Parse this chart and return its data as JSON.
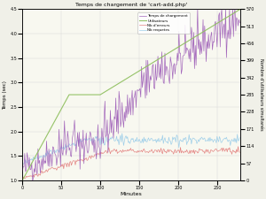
{
  "title": "Temps de chargement de 'cart-add.php'",
  "xlabel": "Minutes",
  "ylabel_left": "Temps (sec)",
  "ylabel_right": "Nombre d'utilisateurs simultanés",
  "legend": [
    "Temps de chargement",
    "Utilisateurs",
    "Nb d'erreurs",
    "Nb requetes"
  ],
  "legend_colors": [
    "#9b59b6",
    "#90c060",
    "#e07070",
    "#90c8e8"
  ],
  "xlim": [
    0,
    280
  ],
  "ylim_left": [
    1.0,
    4.5
  ],
  "ylim_right": [
    0,
    570
  ],
  "left_ticks": [
    1.0,
    1.5,
    2.0,
    2.5,
    3.0,
    3.5,
    4.0,
    4.5
  ],
  "right_ticks": [
    0,
    57,
    114,
    171,
    228,
    285,
    342,
    399,
    456,
    513,
    570
  ],
  "x_ticks": [
    0,
    50,
    100,
    150,
    200,
    250
  ],
  "background_color": "#f0f0e8",
  "plot_bg": "#f8f8f0",
  "n_points": 280,
  "seed": 42
}
